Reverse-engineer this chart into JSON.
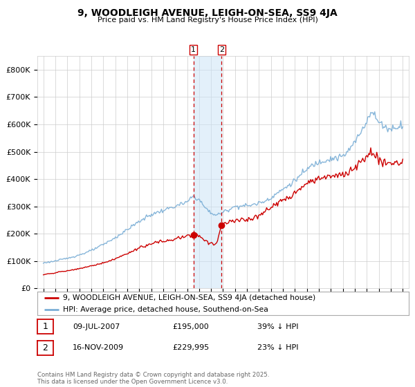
{
  "title": "9, WOODLEIGH AVENUE, LEIGH-ON-SEA, SS9 4JA",
  "subtitle": "Price paid vs. HM Land Registry's House Price Index (HPI)",
  "legend_entries": [
    "9, WOODLEIGH AVENUE, LEIGH-ON-SEA, SS9 4JA (detached house)",
    "HPI: Average price, detached house, Southend-on-Sea"
  ],
  "table_rows": [
    [
      "1",
      "09-JUL-2007",
      "£195,000",
      "39% ↓ HPI"
    ],
    [
      "2",
      "16-NOV-2009",
      "£229,995",
      "23% ↓ HPI"
    ]
  ],
  "footer": "Contains HM Land Registry data © Crown copyright and database right 2025.\nThis data is licensed under the Open Government Licence v3.0.",
  "red_color": "#cc0000",
  "blue_color": "#7aaed6",
  "background_color": "#ffffff",
  "grid_color": "#cccccc",
  "marker1_x": 2007.52,
  "marker1_y": 195000,
  "marker2_x": 2009.88,
  "marker2_y": 229995,
  "vline1_x": 2007.52,
  "vline2_x": 2009.88,
  "shade_x1": 2007.52,
  "shade_x2": 2009.88,
  "ylim": [
    0,
    850000
  ],
  "xlim": [
    1994.5,
    2025.5
  ],
  "blue_pts": [
    [
      1995.0,
      93000
    ],
    [
      1996.0,
      100000
    ],
    [
      1997.0,
      110000
    ],
    [
      1998.0,
      122000
    ],
    [
      1999.0,
      138000
    ],
    [
      2000.0,
      160000
    ],
    [
      2001.0,
      185000
    ],
    [
      2002.0,
      215000
    ],
    [
      2003.0,
      245000
    ],
    [
      2004.0,
      270000
    ],
    [
      2005.0,
      285000
    ],
    [
      2006.0,
      300000
    ],
    [
      2007.0,
      315000
    ],
    [
      2007.5,
      338000
    ],
    [
      2008.0,
      325000
    ],
    [
      2008.5,
      295000
    ],
    [
      2009.0,
      275000
    ],
    [
      2009.5,
      268000
    ],
    [
      2010.0,
      278000
    ],
    [
      2010.5,
      290000
    ],
    [
      2011.0,
      300000
    ],
    [
      2011.5,
      302000
    ],
    [
      2012.0,
      302000
    ],
    [
      2012.5,
      306000
    ],
    [
      2013.0,
      312000
    ],
    [
      2013.5,
      320000
    ],
    [
      2014.0,
      332000
    ],
    [
      2014.5,
      348000
    ],
    [
      2015.0,
      362000
    ],
    [
      2015.5,
      378000
    ],
    [
      2016.0,
      395000
    ],
    [
      2016.5,
      415000
    ],
    [
      2017.0,
      435000
    ],
    [
      2017.5,
      452000
    ],
    [
      2018.0,
      462000
    ],
    [
      2018.5,
      470000
    ],
    [
      2019.0,
      475000
    ],
    [
      2019.5,
      478000
    ],
    [
      2020.0,
      482000
    ],
    [
      2020.5,
      505000
    ],
    [
      2021.0,
      535000
    ],
    [
      2021.5,
      572000
    ],
    [
      2022.0,
      615000
    ],
    [
      2022.3,
      648000
    ],
    [
      2022.6,
      635000
    ],
    [
      2023.0,
      608000
    ],
    [
      2023.5,
      592000
    ],
    [
      2024.0,
      582000
    ],
    [
      2024.5,
      592000
    ],
    [
      2025.0,
      600000
    ]
  ],
  "red_pts": [
    [
      1995.0,
      50000
    ],
    [
      1995.5,
      53000
    ],
    [
      1996.0,
      57000
    ],
    [
      1997.0,
      64000
    ],
    [
      1998.0,
      72000
    ],
    [
      1999.0,
      82000
    ],
    [
      2000.0,
      93000
    ],
    [
      2001.0,
      107000
    ],
    [
      2002.0,
      127000
    ],
    [
      2003.0,
      147000
    ],
    [
      2004.0,
      163000
    ],
    [
      2005.0,
      172000
    ],
    [
      2006.0,
      180000
    ],
    [
      2006.5,
      185000
    ],
    [
      2007.0,
      192000
    ],
    [
      2007.52,
      195000
    ],
    [
      2007.8,
      198000
    ],
    [
      2008.1,
      190000
    ],
    [
      2008.4,
      180000
    ],
    [
      2008.7,
      170000
    ],
    [
      2009.0,
      163000
    ],
    [
      2009.4,
      160000
    ],
    [
      2009.88,
      229995
    ],
    [
      2010.1,
      238000
    ],
    [
      2010.5,
      248000
    ],
    [
      2011.0,
      248000
    ],
    [
      2011.5,
      252000
    ],
    [
      2012.0,
      250000
    ],
    [
      2012.5,
      256000
    ],
    [
      2013.0,
      266000
    ],
    [
      2013.5,
      280000
    ],
    [
      2014.0,
      296000
    ],
    [
      2014.5,
      308000
    ],
    [
      2015.0,
      320000
    ],
    [
      2015.5,
      334000
    ],
    [
      2016.0,
      350000
    ],
    [
      2016.5,
      368000
    ],
    [
      2017.0,
      382000
    ],
    [
      2017.5,
      394000
    ],
    [
      2018.0,
      402000
    ],
    [
      2018.5,
      406000
    ],
    [
      2019.0,
      408000
    ],
    [
      2019.5,
      412000
    ],
    [
      2020.0,
      416000
    ],
    [
      2020.5,
      428000
    ],
    [
      2021.0,
      442000
    ],
    [
      2021.5,
      462000
    ],
    [
      2022.0,
      482000
    ],
    [
      2022.3,
      500000
    ],
    [
      2022.5,
      492000
    ],
    [
      2022.7,
      480000
    ],
    [
      2023.0,
      472000
    ],
    [
      2023.3,
      464000
    ],
    [
      2023.6,
      460000
    ],
    [
      2024.0,
      458000
    ],
    [
      2024.4,
      460000
    ],
    [
      2024.8,
      462000
    ],
    [
      2025.0,
      460000
    ]
  ]
}
